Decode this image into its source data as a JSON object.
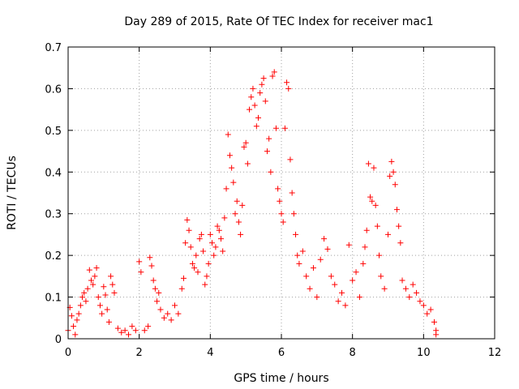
{
  "chart_data": {
    "type": "scatter",
    "title": "Day 289 of 2015, Rate Of TEC Index for receiver mac1",
    "xlabel": "GPS time / hours",
    "ylabel": "ROTI / TECUs",
    "xlim": [
      0,
      12
    ],
    "ylim": [
      0,
      0.7
    ],
    "x_ticks": [
      "0",
      "2",
      "4",
      "6",
      "8",
      "10",
      "12"
    ],
    "y_ticks": [
      "0",
      "0.1",
      "0.2",
      "0.3",
      "0.4",
      "0.5",
      "0.6",
      "0.7"
    ],
    "grid": true,
    "legend": "none",
    "marker": "+",
    "color": "#ff0000",
    "series": [
      {
        "values": [
          [
            0.0,
            0.02
          ],
          [
            0.05,
            0.075
          ],
          [
            0.1,
            0.055
          ],
          [
            0.15,
            0.03
          ],
          [
            0.2,
            0.01
          ],
          [
            0.25,
            0.045
          ],
          [
            0.3,
            0.06
          ],
          [
            0.35,
            0.08
          ],
          [
            0.4,
            0.1
          ],
          [
            0.45,
            0.11
          ],
          [
            0.5,
            0.09
          ],
          [
            0.55,
            0.12
          ],
          [
            0.6,
            0.165
          ],
          [
            0.65,
            0.14
          ],
          [
            0.7,
            0.13
          ],
          [
            0.75,
            0.15
          ],
          [
            0.8,
            0.17
          ],
          [
            0.85,
            0.1
          ],
          [
            0.9,
            0.08
          ],
          [
            0.95,
            0.06
          ],
          [
            1.0,
            0.125
          ],
          [
            1.05,
            0.105
          ],
          [
            1.1,
            0.07
          ],
          [
            1.15,
            0.04
          ],
          [
            1.2,
            0.15
          ],
          [
            1.25,
            0.13
          ],
          [
            1.3,
            0.11
          ],
          [
            1.4,
            0.025
          ],
          [
            1.5,
            0.015
          ],
          [
            1.6,
            0.02
          ],
          [
            1.7,
            0.01
          ],
          [
            1.8,
            0.03
          ],
          [
            1.9,
            0.02
          ],
          [
            2.0,
            0.185
          ],
          [
            2.05,
            0.16
          ],
          [
            2.15,
            0.02
          ],
          [
            2.25,
            0.03
          ],
          [
            2.3,
            0.195
          ],
          [
            2.35,
            0.175
          ],
          [
            2.4,
            0.14
          ],
          [
            2.45,
            0.12
          ],
          [
            2.5,
            0.09
          ],
          [
            2.55,
            0.11
          ],
          [
            2.6,
            0.07
          ],
          [
            2.7,
            0.05
          ],
          [
            2.8,
            0.06
          ],
          [
            2.9,
            0.045
          ],
          [
            3.0,
            0.08
          ],
          [
            3.1,
            0.06
          ],
          [
            3.2,
            0.12
          ],
          [
            3.25,
            0.145
          ],
          [
            3.3,
            0.23
          ],
          [
            3.35,
            0.285
          ],
          [
            3.4,
            0.26
          ],
          [
            3.45,
            0.22
          ],
          [
            3.5,
            0.18
          ],
          [
            3.55,
            0.17
          ],
          [
            3.6,
            0.2
          ],
          [
            3.65,
            0.16
          ],
          [
            3.7,
            0.24
          ],
          [
            3.75,
            0.25
          ],
          [
            3.8,
            0.21
          ],
          [
            3.85,
            0.13
          ],
          [
            3.9,
            0.15
          ],
          [
            3.95,
            0.18
          ],
          [
            4.0,
            0.25
          ],
          [
            4.05,
            0.23
          ],
          [
            4.1,
            0.2
          ],
          [
            4.15,
            0.22
          ],
          [
            4.2,
            0.27
          ],
          [
            4.25,
            0.26
          ],
          [
            4.3,
            0.24
          ],
          [
            4.35,
            0.21
          ],
          [
            4.4,
            0.29
          ],
          [
            4.45,
            0.36
          ],
          [
            4.5,
            0.49
          ],
          [
            4.55,
            0.44
          ],
          [
            4.6,
            0.41
          ],
          [
            4.65,
            0.375
          ],
          [
            4.7,
            0.3
          ],
          [
            4.75,
            0.33
          ],
          [
            4.8,
            0.28
          ],
          [
            4.85,
            0.25
          ],
          [
            4.9,
            0.32
          ],
          [
            4.95,
            0.46
          ],
          [
            5.0,
            0.47
          ],
          [
            5.05,
            0.42
          ],
          [
            5.1,
            0.55
          ],
          [
            5.15,
            0.58
          ],
          [
            5.2,
            0.6
          ],
          [
            5.25,
            0.56
          ],
          [
            5.3,
            0.51
          ],
          [
            5.35,
            0.53
          ],
          [
            5.4,
            0.59
          ],
          [
            5.45,
            0.61
          ],
          [
            5.5,
            0.625
          ],
          [
            5.55,
            0.57
          ],
          [
            5.6,
            0.45
          ],
          [
            5.65,
            0.48
          ],
          [
            5.7,
            0.4
          ],
          [
            5.75,
            0.63
          ],
          [
            5.8,
            0.64
          ],
          [
            5.85,
            0.505
          ],
          [
            5.9,
            0.36
          ],
          [
            5.95,
            0.33
          ],
          [
            6.0,
            0.3
          ],
          [
            6.05,
            0.28
          ],
          [
            6.1,
            0.505
          ],
          [
            6.15,
            0.615
          ],
          [
            6.2,
            0.6
          ],
          [
            6.25,
            0.43
          ],
          [
            6.3,
            0.35
          ],
          [
            6.35,
            0.3
          ],
          [
            6.4,
            0.25
          ],
          [
            6.45,
            0.2
          ],
          [
            6.5,
            0.18
          ],
          [
            6.6,
            0.21
          ],
          [
            6.7,
            0.15
          ],
          [
            6.8,
            0.12
          ],
          [
            6.9,
            0.17
          ],
          [
            7.0,
            0.1
          ],
          [
            7.1,
            0.19
          ],
          [
            7.2,
            0.24
          ],
          [
            7.3,
            0.215
          ],
          [
            7.4,
            0.15
          ],
          [
            7.5,
            0.13
          ],
          [
            7.6,
            0.09
          ],
          [
            7.7,
            0.11
          ],
          [
            7.8,
            0.08
          ],
          [
            7.9,
            0.225
          ],
          [
            8.0,
            0.14
          ],
          [
            8.1,
            0.16
          ],
          [
            8.2,
            0.1
          ],
          [
            8.3,
            0.18
          ],
          [
            8.35,
            0.22
          ],
          [
            8.4,
            0.26
          ],
          [
            8.45,
            0.42
          ],
          [
            8.5,
            0.34
          ],
          [
            8.55,
            0.33
          ],
          [
            8.6,
            0.41
          ],
          [
            8.65,
            0.32
          ],
          [
            8.7,
            0.27
          ],
          [
            8.75,
            0.2
          ],
          [
            8.8,
            0.15
          ],
          [
            8.9,
            0.12
          ],
          [
            9.0,
            0.25
          ],
          [
            9.05,
            0.39
          ],
          [
            9.1,
            0.425
          ],
          [
            9.15,
            0.4
          ],
          [
            9.2,
            0.37
          ],
          [
            9.25,
            0.31
          ],
          [
            9.3,
            0.27
          ],
          [
            9.35,
            0.23
          ],
          [
            9.4,
            0.14
          ],
          [
            9.5,
            0.12
          ],
          [
            9.6,
            0.1
          ],
          [
            9.7,
            0.13
          ],
          [
            9.8,
            0.11
          ],
          [
            9.9,
            0.09
          ],
          [
            10.0,
            0.08
          ],
          [
            10.1,
            0.06
          ],
          [
            10.2,
            0.07
          ],
          [
            10.3,
            0.04
          ],
          [
            10.35,
            0.02
          ],
          [
            10.35,
            0.01
          ]
        ]
      }
    ]
  }
}
